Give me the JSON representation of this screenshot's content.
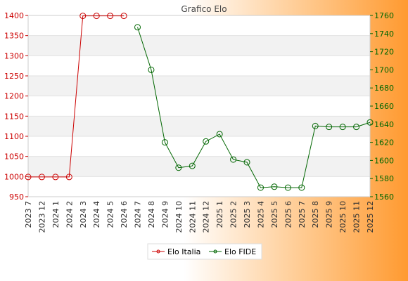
{
  "chart_data": {
    "type": "line",
    "title": "Grafico Elo",
    "categories": [
      "2023 7",
      "2023 12",
      "2024 1",
      "2024 2",
      "2024 3",
      "2024 4",
      "2024 5",
      "2024 6",
      "2024 7",
      "2024 8",
      "2024 9",
      "2024 10",
      "2024 11",
      "2024 12",
      "2025 1",
      "2025 2",
      "2025 3",
      "2025 4",
      "2025 5",
      "2025 6",
      "2025 7",
      "2025 8",
      "2025 9",
      "2025 10",
      "2025 11",
      "2025 12"
    ],
    "left_axis": {
      "ylim": [
        950,
        1400
      ],
      "ticks": [
        950,
        1000,
        1050,
        1100,
        1150,
        1200,
        1250,
        1300,
        1350,
        1400
      ],
      "color": "#cc0000"
    },
    "right_axis": {
      "ylim": [
        1560,
        1760
      ],
      "ticks": [
        1560,
        1580,
        1600,
        1620,
        1640,
        1660,
        1680,
        1700,
        1720,
        1740,
        1760
      ],
      "color": "#006600"
    },
    "series": [
      {
        "name": "Elo Italia",
        "axis": "left",
        "color": "#cc0000",
        "values": [
          999,
          999,
          999,
          999,
          1399,
          1399,
          1399,
          1399,
          null,
          null,
          null,
          null,
          null,
          null,
          null,
          null,
          null,
          null,
          null,
          null,
          null,
          null,
          null,
          null,
          null,
          null
        ]
      },
      {
        "name": "Elo FIDE",
        "axis": "right",
        "color": "#006600",
        "values": [
          null,
          null,
          null,
          null,
          null,
          null,
          null,
          null,
          1747,
          1700,
          1620,
          1592,
          1594,
          1621,
          1629,
          1601,
          1598,
          1570,
          1571,
          1570,
          1570,
          1638,
          1637,
          1637,
          1637,
          1642
        ]
      }
    ],
    "legend": "bottom-center",
    "grid": true
  }
}
